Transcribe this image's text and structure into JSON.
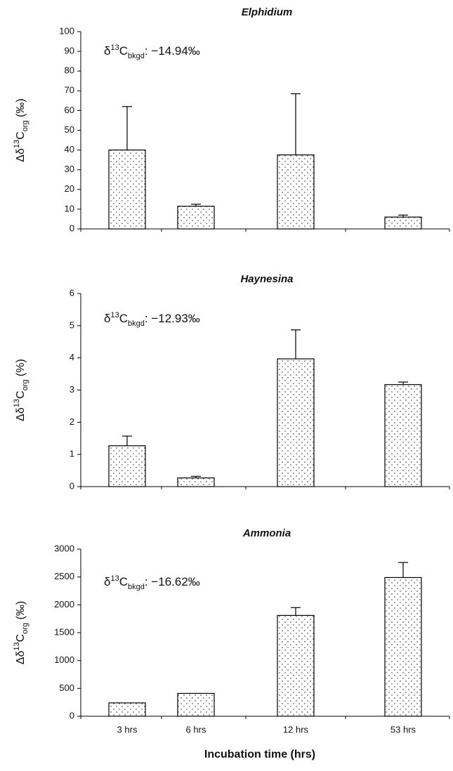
{
  "chart_data": [
    {
      "type": "bar",
      "title": "Elphidium",
      "annotation": [
        "δ",
        "13",
        "C",
        "bkgd",
        ": −14.94‰"
      ],
      "y_label": [
        "Δδ",
        "13",
        "C",
        "org",
        " (‰)"
      ],
      "categories": [
        null,
        null,
        null,
        null
      ],
      "values": [
        40,
        11.5,
        37.5,
        6
      ],
      "errors": [
        22,
        1,
        31,
        1
      ],
      "ylim": [
        0,
        100
      ],
      "yticks": [
        0,
        10,
        20,
        30,
        40,
        50,
        60,
        70,
        80,
        90,
        100
      ],
      "color": "#ffffff"
    },
    {
      "type": "bar",
      "title": "Haynesina",
      "annotation": [
        "δ",
        "13",
        "C",
        "bkgd",
        ": −12.93‰"
      ],
      "y_label": [
        "Δδ",
        "13",
        "C",
        "org",
        " (%)"
      ],
      "categories": [
        null,
        null,
        null,
        null
      ],
      "values": [
        1.27,
        0.27,
        3.97,
        3.17
      ],
      "errors": [
        0.3,
        0.05,
        0.9,
        0.08
      ],
      "ylim": [
        0,
        6
      ],
      "yticks": [
        0,
        1,
        2,
        3,
        4,
        5,
        6
      ],
      "color": "#ffffff"
    },
    {
      "type": "bar",
      "title": "Ammonia",
      "annotation": [
        "δ",
        "13",
        "C",
        "bkgd",
        ": −16.62‰"
      ],
      "y_label": [
        "Δδ",
        "13",
        "C",
        "org",
        " (‰)"
      ],
      "categories": [
        "3 hrs",
        "6 hrs",
        "12 hrs",
        "53 hrs"
      ],
      "x_label": "Incubation time (hrs)",
      "values": [
        240,
        410,
        1810,
        2490
      ],
      "errors": [
        null,
        null,
        140,
        270
      ],
      "ylim": [
        0,
        3000
      ],
      "yticks": [
        0,
        500,
        1000,
        1500,
        2000,
        2500,
        3000
      ],
      "color": "#ffffff"
    }
  ]
}
